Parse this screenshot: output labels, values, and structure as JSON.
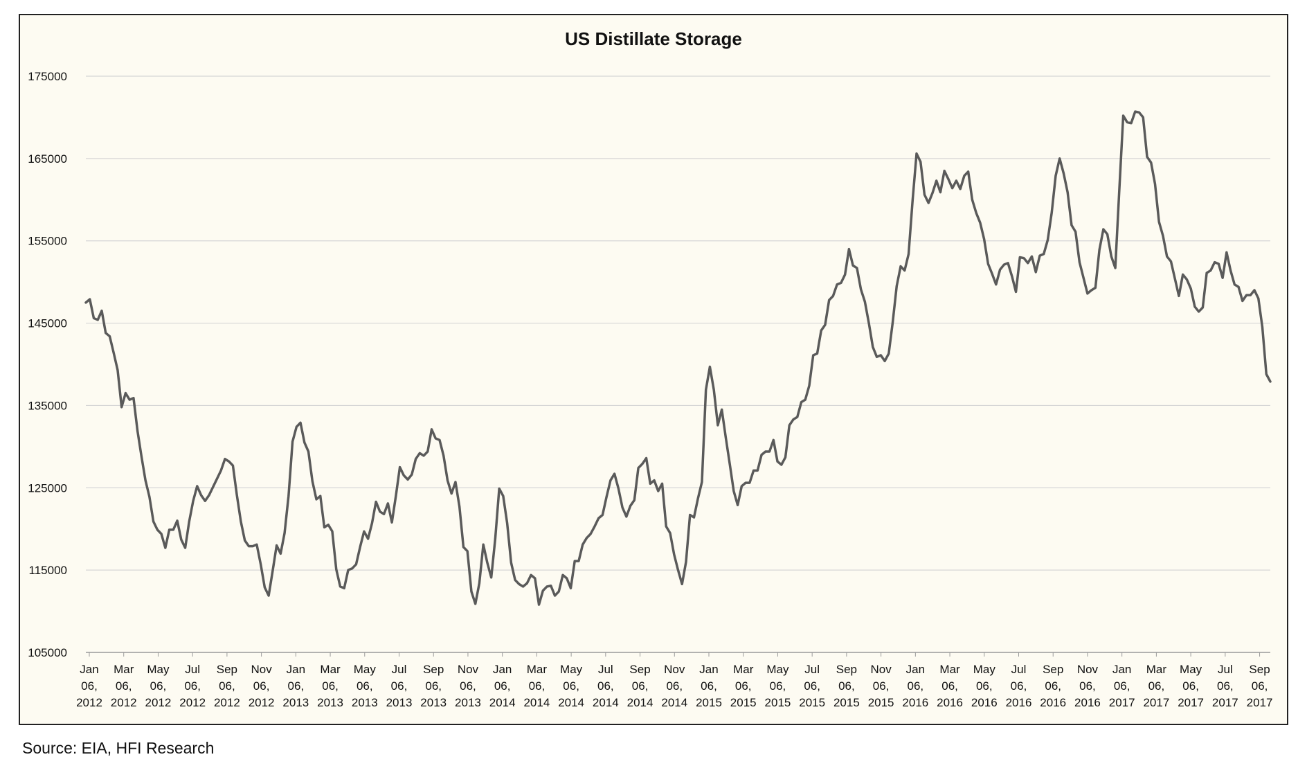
{
  "chart_data": {
    "type": "line",
    "title": "US Distillate Storage",
    "xlabel": "",
    "ylabel": "",
    "ylim": [
      105000,
      175000
    ],
    "yticks": [
      105000,
      115000,
      125000,
      135000,
      145000,
      155000,
      165000,
      175000
    ],
    "grid": true,
    "legend": "none",
    "line_color": "#5a5a5a",
    "x_start": "Jan 06, 2012",
    "x_end": "Sep 29, 2017",
    "x_tick_labels": [
      [
        "Jan",
        "06,",
        "2012"
      ],
      [
        "Mar",
        "06,",
        "2012"
      ],
      [
        "May",
        "06,",
        "2012"
      ],
      [
        "Jul",
        "06,",
        "2012"
      ],
      [
        "Sep",
        "06,",
        "2012"
      ],
      [
        "Nov",
        "06,",
        "2012"
      ],
      [
        "Jan",
        "06,",
        "2013"
      ],
      [
        "Mar",
        "06,",
        "2013"
      ],
      [
        "May",
        "06,",
        "2013"
      ],
      [
        "Jul",
        "06,",
        "2013"
      ],
      [
        "Sep",
        "06,",
        "2013"
      ],
      [
        "Nov",
        "06,",
        "2013"
      ],
      [
        "Jan",
        "06,",
        "2014"
      ],
      [
        "Mar",
        "06,",
        "2014"
      ],
      [
        "May",
        "06,",
        "2014"
      ],
      [
        "Jul",
        "06,",
        "2014"
      ],
      [
        "Sep",
        "06,",
        "2014"
      ],
      [
        "Nov",
        "06,",
        "2014"
      ],
      [
        "Jan",
        "06,",
        "2015"
      ],
      [
        "Mar",
        "06,",
        "2015"
      ],
      [
        "May",
        "06,",
        "2015"
      ],
      [
        "Jul",
        "06,",
        "2015"
      ],
      [
        "Sep",
        "06,",
        "2015"
      ],
      [
        "Nov",
        "06,",
        "2015"
      ],
      [
        "Jan",
        "06,",
        "2016"
      ],
      [
        "Mar",
        "06,",
        "2016"
      ],
      [
        "May",
        "06,",
        "2016"
      ],
      [
        "Jul",
        "06,",
        "2016"
      ],
      [
        "Sep",
        "06,",
        "2016"
      ],
      [
        "Nov",
        "06,",
        "2016"
      ],
      [
        "Jan",
        "06,",
        "2017"
      ],
      [
        "Mar",
        "06,",
        "2017"
      ],
      [
        "May",
        "06,",
        "2017"
      ],
      [
        "Jul",
        "06,",
        "2017"
      ],
      [
        "Sep",
        "06,",
        "2017"
      ]
    ],
    "series": [
      {
        "values": [
          147500,
          147900,
          145600,
          145400,
          146500,
          143800,
          143400,
          141400,
          139300,
          134800,
          136500,
          135700,
          135900,
          131900,
          128800,
          125900,
          123900,
          120900,
          119900,
          119400,
          117700,
          119900,
          119900,
          121000,
          118700,
          117700,
          120900,
          123400,
          125200,
          124100,
          123400,
          124100,
          125100,
          126100,
          127100,
          128500,
          128200,
          127700,
          124100,
          120900,
          118600,
          117900,
          117900,
          118100,
          115700,
          112900,
          111900,
          114900,
          118000,
          117000,
          119500,
          124000,
          130600,
          132400,
          132900,
          130500,
          129400,
          125800,
          123600,
          124000,
          120200,
          120500,
          119700,
          115100,
          113000,
          112800,
          115000,
          115200,
          115700,
          117800,
          119700,
          118800,
          120700,
          123300,
          122100,
          121800,
          123100,
          120800,
          124000,
          127500,
          126500,
          126000,
          126600,
          128500,
          129200,
          128900,
          129400,
          132100,
          131000,
          130800,
          128900,
          125900,
          124300,
          125700,
          122700,
          117800,
          117300,
          112400,
          110900,
          113400,
          118100,
          115900,
          114100,
          118800,
          124900,
          124000,
          120700,
          115900,
          113800,
          113300,
          113000,
          113400,
          114400,
          114000,
          110800,
          112500,
          113000,
          113100,
          111900,
          112400,
          114400,
          114000,
          112800,
          116100,
          116100,
          118100,
          118900,
          119400,
          120300,
          121300,
          121700,
          123900,
          125900,
          126700,
          124900,
          122600,
          121500,
          122800,
          123500,
          127400,
          127900,
          128600,
          125500,
          125900,
          124600,
          125500,
          120300,
          119500,
          116900,
          115000,
          113300,
          116000,
          121700,
          121400,
          123700,
          125700,
          136900,
          139700,
          136900,
          132600,
          134500,
          131100,
          127900,
          124600,
          122900,
          125200,
          125600,
          125600,
          127100,
          127100,
          129000,
          129400,
          129400,
          130800,
          128200,
          127800,
          128700,
          132600,
          133300,
          133600,
          135400,
          135700,
          137400,
          141100,
          141300,
          144100,
          144800,
          147800,
          148300,
          149700,
          149900,
          150900,
          154000,
          152000,
          151700,
          149100,
          147600,
          145000,
          142100,
          140900,
          141100,
          140400,
          141300,
          145100,
          149500,
          151900,
          151400,
          153400,
          159900,
          165600,
          164600,
          160600,
          159600,
          160800,
          162300,
          160900,
          163500,
          162500,
          161400,
          162300,
          161300,
          162900,
          163400,
          160000,
          158400,
          157200,
          155200,
          152200,
          151000,
          149700,
          151500,
          152100,
          152300,
          150700,
          148800,
          153000,
          152900,
          152300,
          153100,
          151200,
          153200,
          153400,
          155100,
          158400,
          162900,
          165000,
          163200,
          160900,
          156900,
          156100,
          152400,
          150500,
          148600,
          149000,
          149300,
          153900,
          156400,
          155800,
          153100,
          151700,
          161100,
          170200,
          169400,
          169300,
          170700,
          170600,
          170000,
          165200,
          164500,
          161900,
          157300,
          155600,
          153100,
          152500,
          150400,
          148300,
          150900,
          150300,
          149200,
          147000,
          146400,
          146900,
          151100,
          151400,
          152400,
          152200,
          150500,
          153600,
          151400,
          149700,
          149400,
          147700,
          148400,
          148400,
          149000,
          148000,
          144500,
          138800,
          137900
        ]
      }
    ]
  },
  "source_note": "Source: EIA, HFI Research"
}
